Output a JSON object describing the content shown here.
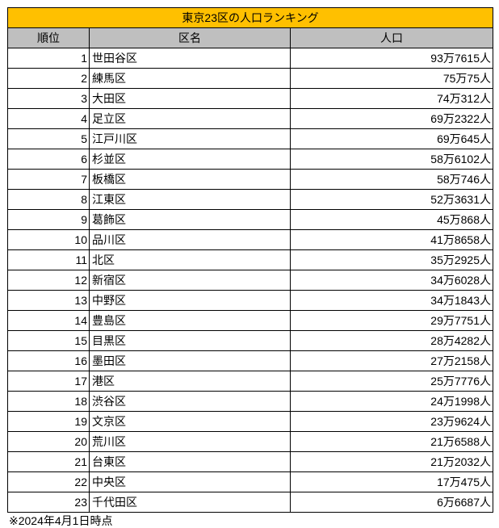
{
  "title": "東京23区の人口ランキング",
  "title_bg_color": "#FFC000",
  "header_bg_color": "#BFBFBF",
  "headers": {
    "rank": "順位",
    "name": "区名",
    "population": "人口"
  },
  "rows": [
    {
      "rank": "1",
      "name": "世田谷区",
      "population": "93万7615人"
    },
    {
      "rank": "2",
      "name": "練馬区",
      "population": "75万75人"
    },
    {
      "rank": "3",
      "name": "大田区",
      "population": "74万312人"
    },
    {
      "rank": "4",
      "name": "足立区",
      "population": "69万2322人"
    },
    {
      "rank": "5",
      "name": "江戸川区",
      "population": "69万645人"
    },
    {
      "rank": "6",
      "name": "杉並区",
      "population": "58万6102人"
    },
    {
      "rank": "7",
      "name": "板橋区",
      "population": "58万746人"
    },
    {
      "rank": "8",
      "name": "江東区",
      "population": "52万3631人"
    },
    {
      "rank": "9",
      "name": "葛飾区",
      "population": "45万868人"
    },
    {
      "rank": "10",
      "name": "品川区",
      "population": "41万8658人"
    },
    {
      "rank": "11",
      "name": "北区",
      "population": "35万2925人"
    },
    {
      "rank": "12",
      "name": "新宿区",
      "population": "34万6028人"
    },
    {
      "rank": "13",
      "name": "中野区",
      "population": "34万1843人"
    },
    {
      "rank": "14",
      "name": "豊島区",
      "population": "29万7751人"
    },
    {
      "rank": "15",
      "name": "目黒区",
      "population": "28万4282人"
    },
    {
      "rank": "16",
      "name": "墨田区",
      "population": "27万2158人"
    },
    {
      "rank": "17",
      "name": "港区",
      "population": "25万7776人"
    },
    {
      "rank": "18",
      "name": "渋谷区",
      "population": "24万1998人"
    },
    {
      "rank": "19",
      "name": "文京区",
      "population": "23万9624人"
    },
    {
      "rank": "20",
      "name": "荒川区",
      "population": "21万6588人"
    },
    {
      "rank": "21",
      "name": "台東区",
      "population": "21万2032人"
    },
    {
      "rank": "22",
      "name": "中央区",
      "population": "17万475人"
    },
    {
      "rank": "23",
      "name": "千代田区",
      "population": "6万6687人"
    }
  ],
  "footnote": "※2024年4月1日時点"
}
